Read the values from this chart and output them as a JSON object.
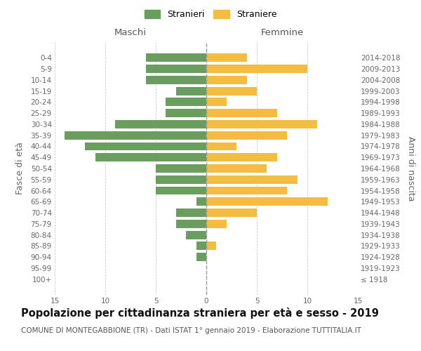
{
  "age_groups": [
    "100+",
    "95-99",
    "90-94",
    "85-89",
    "80-84",
    "75-79",
    "70-74",
    "65-69",
    "60-64",
    "55-59",
    "50-54",
    "45-49",
    "40-44",
    "35-39",
    "30-34",
    "25-29",
    "20-24",
    "15-19",
    "10-14",
    "5-9",
    "0-4"
  ],
  "birth_years": [
    "≤ 1918",
    "1919-1923",
    "1924-1928",
    "1929-1933",
    "1934-1938",
    "1939-1943",
    "1944-1948",
    "1949-1953",
    "1954-1958",
    "1959-1963",
    "1964-1968",
    "1969-1973",
    "1974-1978",
    "1979-1983",
    "1984-1988",
    "1989-1993",
    "1994-1998",
    "1999-2003",
    "2004-2008",
    "2009-2013",
    "2014-2018"
  ],
  "maschi": [
    0,
    0,
    1,
    1,
    2,
    3,
    3,
    1,
    5,
    5,
    5,
    11,
    12,
    14,
    9,
    4,
    4,
    3,
    6,
    6,
    6
  ],
  "femmine": [
    0,
    0,
    0,
    1,
    0,
    2,
    5,
    12,
    8,
    9,
    6,
    7,
    3,
    8,
    11,
    7,
    2,
    5,
    4,
    10,
    4
  ],
  "maschi_color": "#6a9e5f",
  "femmine_color": "#f5bc42",
  "background_color": "#ffffff",
  "grid_color": "#cccccc",
  "title": "Popolazione per cittadinanza straniera per età e sesso - 2019",
  "subtitle": "COMUNE DI MONTEGABBIONE (TR) - Dati ISTAT 1° gennaio 2019 - Elaborazione TUTTITALIA.IT",
  "xlabel_left": "Maschi",
  "xlabel_right": "Femmine",
  "ylabel_left": "Fasce di età",
  "ylabel_right": "Anni di nascita",
  "legend_stranieri": "Stranieri",
  "legend_straniere": "Straniere",
  "xlim": 15,
  "title_fontsize": 10.5,
  "subtitle_fontsize": 7.5,
  "axis_fontsize": 9,
  "tick_fontsize": 7.5,
  "header_fontsize": 9.5
}
